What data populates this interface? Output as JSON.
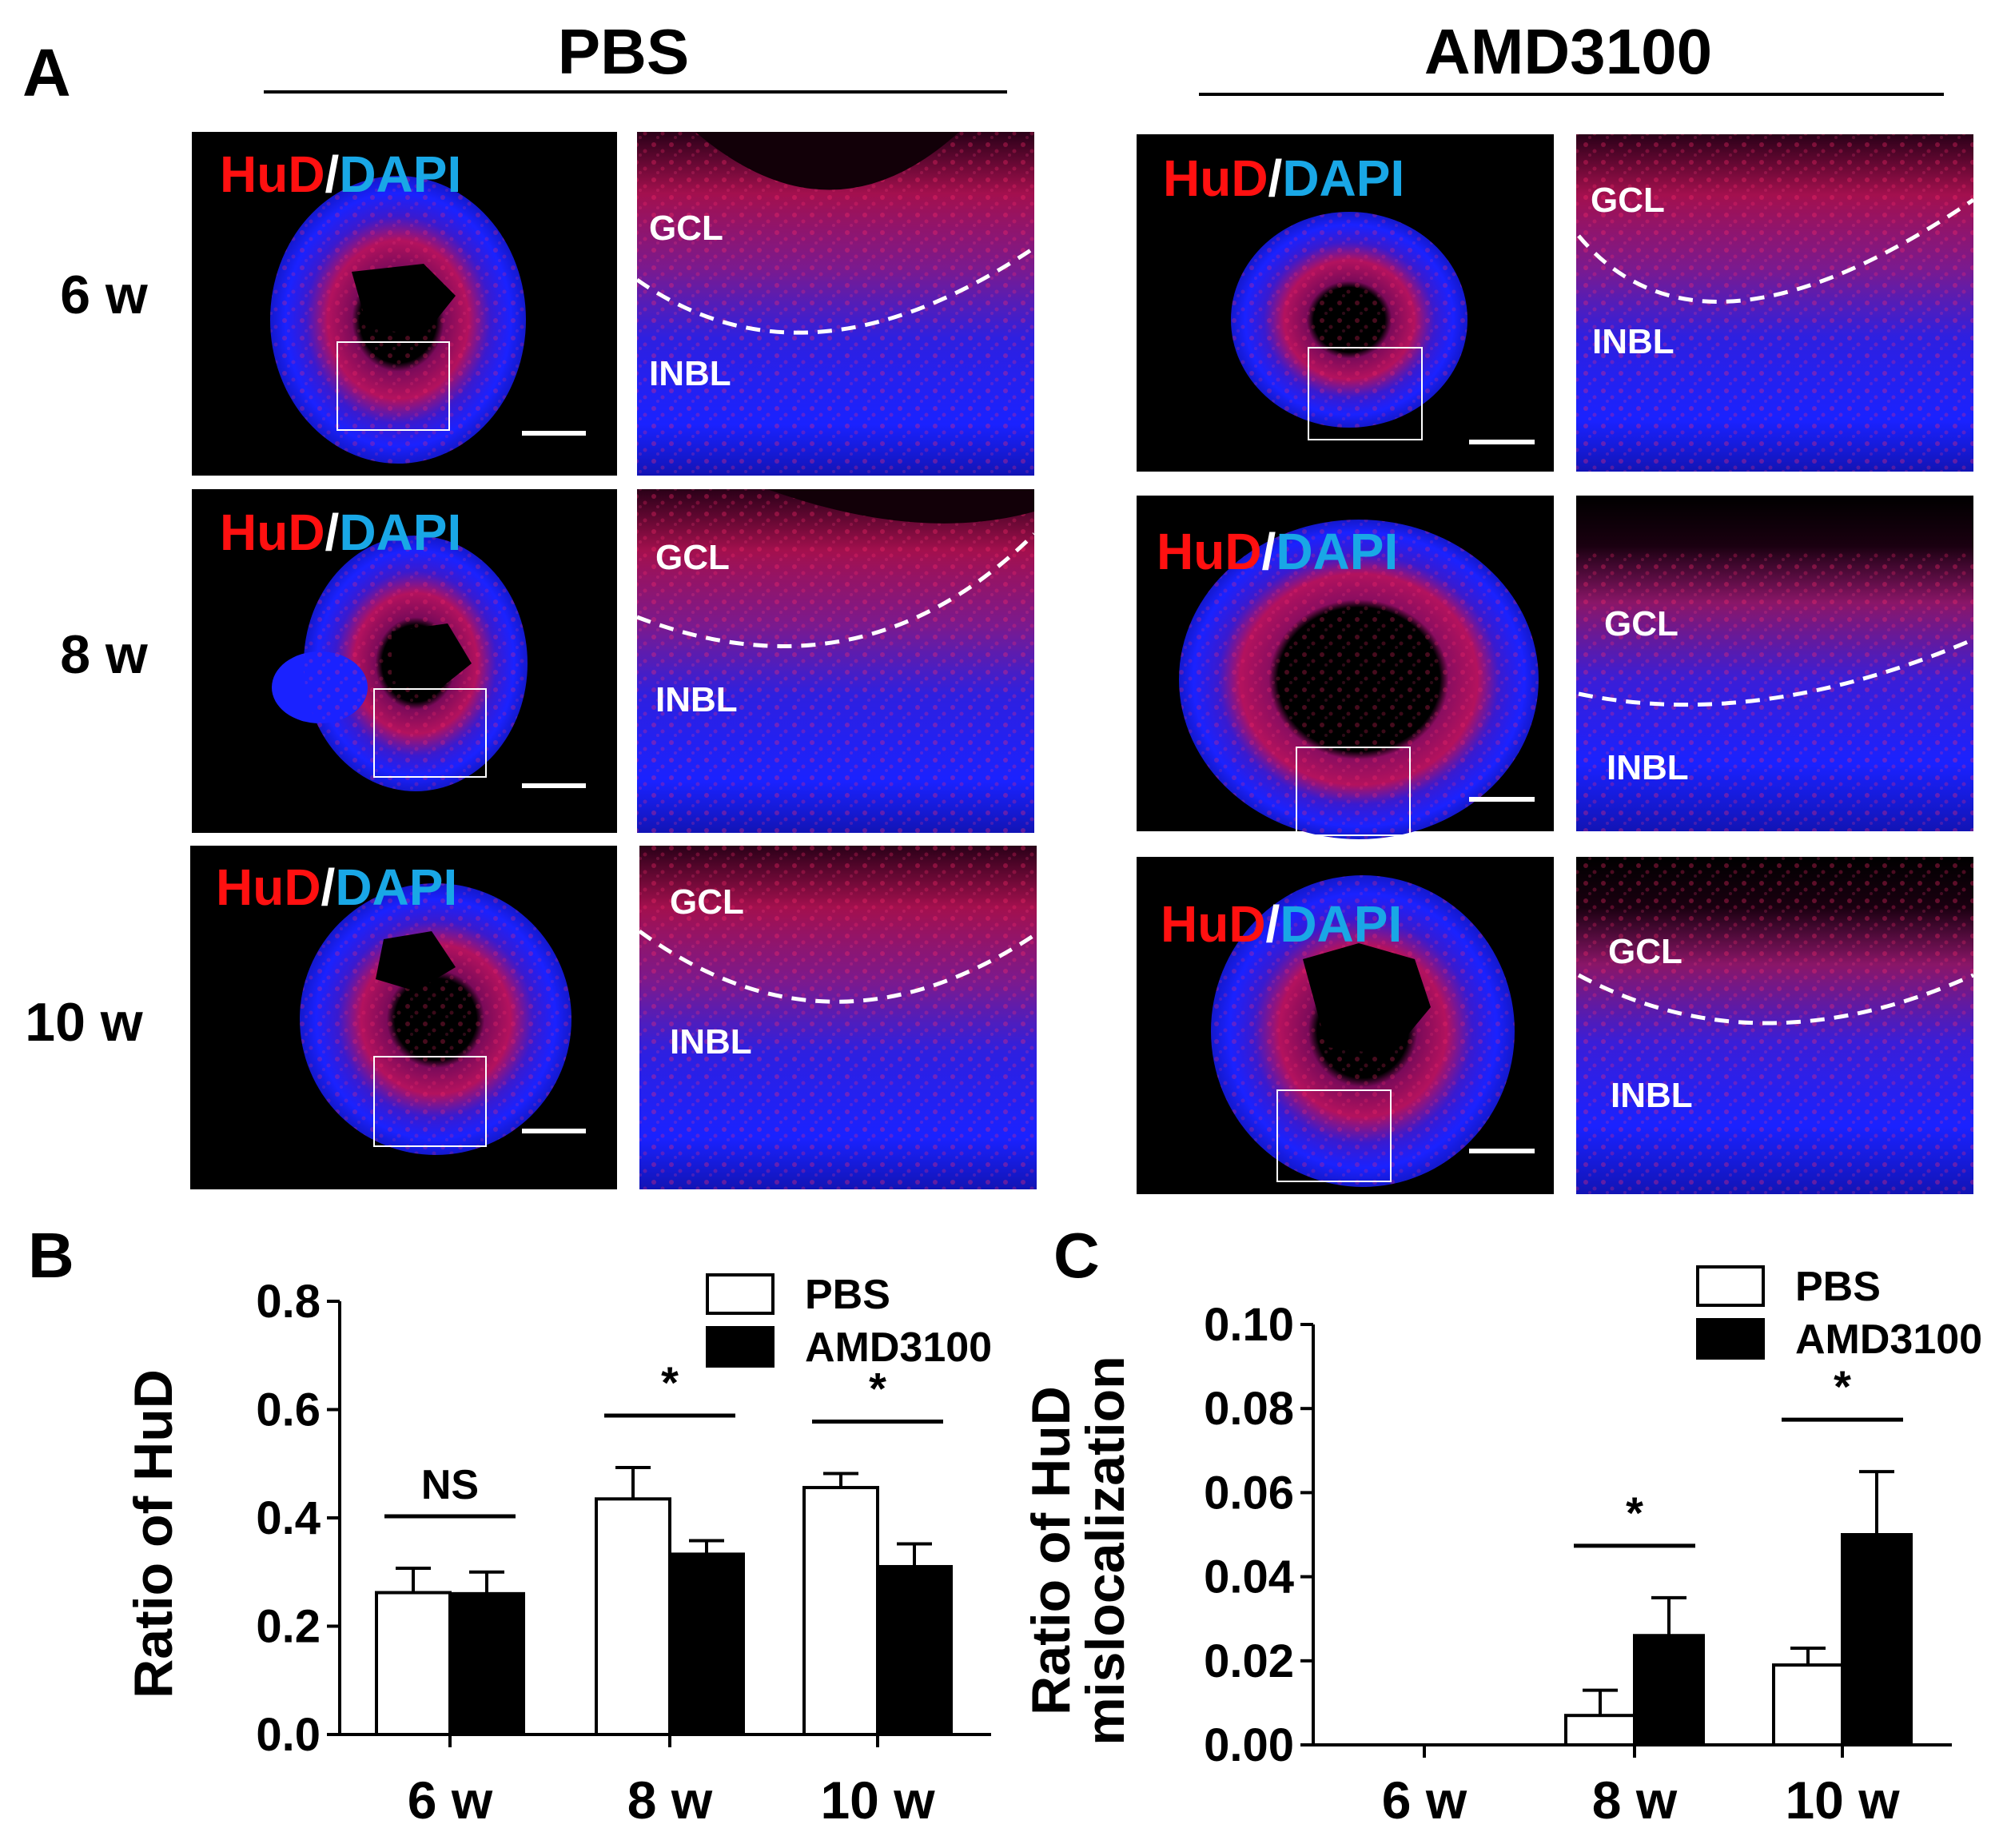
{
  "panel_a": {
    "letter": "A",
    "groups": [
      "PBS",
      "AMD3100"
    ],
    "rows": [
      "6 w",
      "8 w",
      "10 w"
    ],
    "stain_red": "HuD",
    "stain_sep": "/",
    "stain_blue": "DAPI",
    "layer_top": "GCL",
    "layer_bottom": "INBL"
  },
  "chart_data": [
    {
      "panel": "B",
      "type": "bar",
      "categories": [
        "6 w",
        "8 w",
        "10 w"
      ],
      "ylabel": "Ratio of HuD",
      "ylim": [
        0,
        0.8
      ],
      "yticks": [
        "0.0",
        "0.2",
        "0.4",
        "0.6",
        "0.8"
      ],
      "legend_position": "top-right",
      "series": [
        {
          "name": "PBS",
          "fill": "#ffffff",
          "values": [
            0.262,
            0.435,
            0.456
          ],
          "errors": [
            0.045,
            0.058,
            0.026
          ]
        },
        {
          "name": "AMD3100",
          "fill": "#000000",
          "values": [
            0.26,
            0.333,
            0.31
          ],
          "errors": [
            0.04,
            0.025,
            0.042
          ]
        }
      ],
      "significance": [
        "NS",
        "*",
        "*"
      ]
    },
    {
      "panel": "C",
      "type": "bar",
      "categories": [
        "6 w",
        "8 w",
        "10 w"
      ],
      "ylabel_lines": [
        "Ratio of HuD",
        "mislocalization"
      ],
      "ylim": [
        0,
        0.1
      ],
      "yticks": [
        "0.00",
        "0.02",
        "0.04",
        "0.06",
        "0.08",
        "0.10"
      ],
      "legend_position": "top-right",
      "series": [
        {
          "name": "PBS",
          "fill": "#ffffff",
          "values": [
            0,
            0.007,
            0.019
          ],
          "errors": [
            0,
            0.006,
            0.004
          ]
        },
        {
          "name": "AMD3100",
          "fill": "#000000",
          "values": [
            0,
            0.026,
            0.05
          ],
          "errors": [
            0,
            0.009,
            0.015
          ]
        }
      ],
      "significance": [
        "",
        "*",
        "*"
      ]
    }
  ],
  "colors": {
    "hud_red": "#ff1010",
    "dapi_blue": "#19a7e6",
    "tissue_blue": "#1a22ff",
    "background": "#000000"
  }
}
